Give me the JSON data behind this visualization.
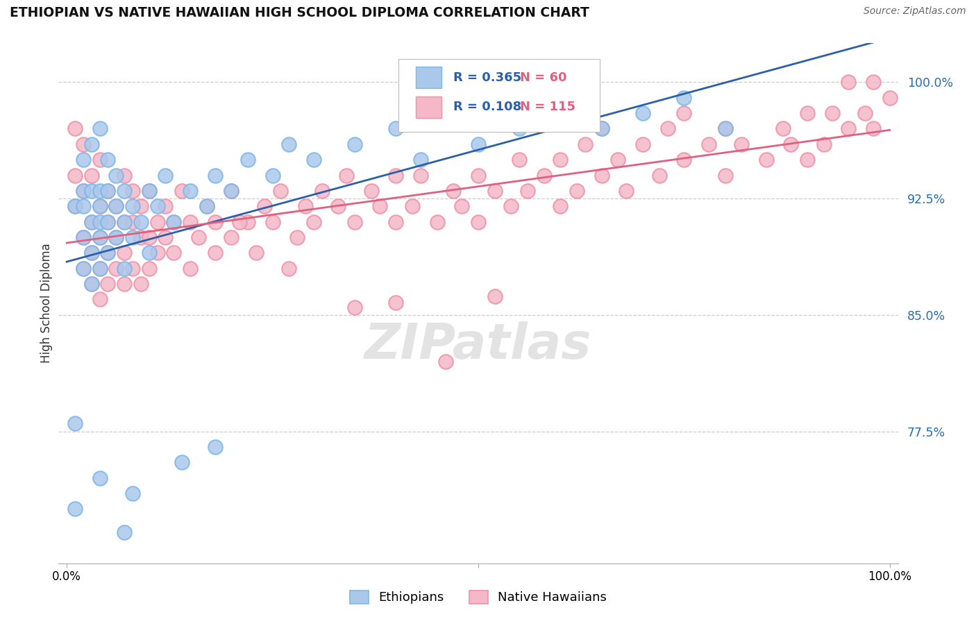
{
  "title": "ETHIOPIAN VS NATIVE HAWAIIAN HIGH SCHOOL DIPLOMA CORRELATION CHART",
  "source_text": "Source: ZipAtlas.com",
  "ylabel": "High School Diploma",
  "ethiopian_color": "#aac8ea",
  "ethiopian_edge_color": "#7eb6e8",
  "native_hawaiian_color": "#f4b8c8",
  "native_hawaiian_edge_color": "#f090a8",
  "trendline_ethiopian_color": "#2b5fa8",
  "trendline_native_hawaiian_color": "#e06080",
  "legend_R_eth": "R = 0.365",
  "legend_N_eth": "N = 60",
  "legend_R_nat": "R = 0.108",
  "legend_N_nat": "N = 115",
  "watermark": "ZIPatlas",
  "ytick_positions": [
    0.775,
    0.85,
    0.925,
    1.0
  ],
  "ytick_labels": [
    "77.5%",
    "85.0%",
    "92.5%",
    "100.0%"
  ],
  "grid_lines": [
    0.775,
    0.85,
    0.925,
    1.0
  ],
  "ymin": 0.69,
  "ymax": 1.025,
  "xmin": -0.01,
  "xmax": 1.01
}
